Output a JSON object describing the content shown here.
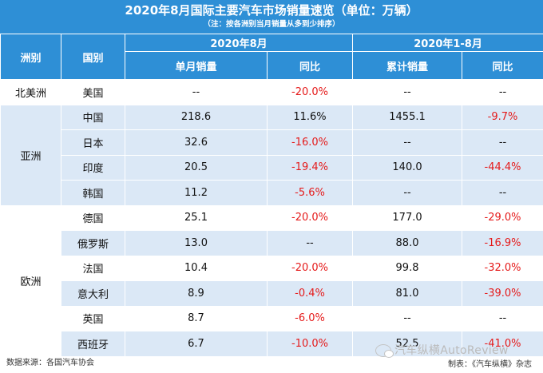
{
  "title": "2020年8月国际主要汽车市场销量速览（单位：万辆）",
  "subtitle": "（注：按各洲别当月销量从多到少排序）",
  "headers": {
    "period_month": "2020年8月",
    "period_ytd": "2020年1-8月",
    "continent": "洲别",
    "country": "国别",
    "monthly_sales": "单月销量",
    "yoy_month": "同比",
    "ytd_sales": "累计销量",
    "yoy_ytd": "同比"
  },
  "continents": {
    "north_america": "北美洲",
    "asia": "亚洲",
    "europe": "欧洲"
  },
  "rows": [
    {
      "country": "美国",
      "monthly": "--",
      "yoy": "-20.0%",
      "ytd": "--",
      "ytd_yoy": "--"
    },
    {
      "country": "中国",
      "monthly": "218.6",
      "yoy": "11.6%",
      "ytd": "1455.1",
      "ytd_yoy": "-9.7%"
    },
    {
      "country": "日本",
      "monthly": "32.6",
      "yoy": "-16.0%",
      "ytd": "--",
      "ytd_yoy": "--"
    },
    {
      "country": "印度",
      "monthly": "20.5",
      "yoy": "-19.4%",
      "ytd": "140.0",
      "ytd_yoy": "-44.4%"
    },
    {
      "country": "韩国",
      "monthly": "11.2",
      "yoy": "-5.6%",
      "ytd": "--",
      "ytd_yoy": "--"
    },
    {
      "country": "德国",
      "monthly": "25.1",
      "yoy": "-20.0%",
      "ytd": "177.0",
      "ytd_yoy": "-29.0%"
    },
    {
      "country": "俄罗斯",
      "monthly": "13.0",
      "yoy": "--",
      "ytd": "88.0",
      "ytd_yoy": "-16.9%"
    },
    {
      "country": "法国",
      "monthly": "10.4",
      "yoy": "-20.0%",
      "ytd": "99.8",
      "ytd_yoy": "-32.0%"
    },
    {
      "country": "意大利",
      "monthly": "8.9",
      "yoy": "-0.4%",
      "ytd": "81.0",
      "ytd_yoy": "-39.0%"
    },
    {
      "country": "英国",
      "monthly": "8.7",
      "yoy": "-6.0%",
      "ytd": "--",
      "ytd_yoy": "--"
    },
    {
      "country": "西班牙",
      "monthly": "6.7",
      "yoy": "-10.0%",
      "ytd": "52.5",
      "ytd_yoy": "-41.0%"
    }
  ],
  "footer": {
    "source": "数据来源：各国汽车协会",
    "producer": "制表：《汽车纵横》杂志",
    "watermark": "汽车纵横AutoReview"
  },
  "colors": {
    "header_blue": "#2e8fd6",
    "row_blue": "#dbe8f6",
    "negative_red": "#e51a1a"
  }
}
